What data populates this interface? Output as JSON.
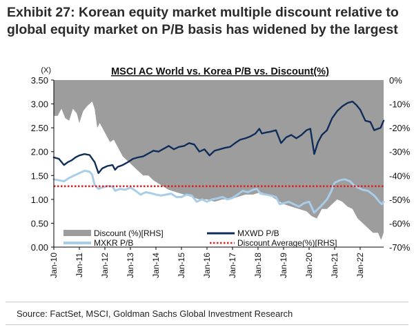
{
  "exhibit": {
    "title": "Exhibit 27: Korean equity market multiple discount relative to global equity market on P/B basis has widened by the largest",
    "source": "Source: FactSet, MSCI, Goldman Sachs Global Investment Research"
  },
  "chart_data": {
    "type": "line",
    "title": "MSCI AC World vs. Korea P/B vs. Discount(%)",
    "y_left_unit": "(X)",
    "y_left_ticks": [
      "0.00",
      "0.50",
      "1.00",
      "1.50",
      "2.00",
      "2.50",
      "3.00",
      "3.50"
    ],
    "y_left_range": [
      0,
      3.5
    ],
    "y_right_ticks": [
      "0%",
      "-10%",
      "-20%",
      "-30%",
      "-40%",
      "-50%",
      "-60%",
      "-70%"
    ],
    "y_right_range": [
      -70,
      0
    ],
    "x_ticks": [
      "Jan-10",
      "Jan-11",
      "Jan-12",
      "Jan-13",
      "Jan-14",
      "Jan-15",
      "Jan-16",
      "Jan-17",
      "Jan-18",
      "Jan-19",
      "Jan-20",
      "Jan-21",
      "Jan-22"
    ],
    "x_range": [
      2010.0,
      2022.92
    ],
    "legend": [
      {
        "label": "Discount (%)[RHS]",
        "key": "discount"
      },
      {
        "label": "MXWD P/B",
        "key": "mxwd"
      },
      {
        "label": "MXKR P/B",
        "key": "mxkr"
      },
      {
        "label": "Discount Average(%)[RHS]",
        "key": "avg"
      }
    ],
    "colors": {
      "discount": "#9d9d9d",
      "mxwd": "#0f2d59",
      "mxkr": "#a8cde8",
      "avg": "#e02020"
    },
    "series": [
      {
        "name": "MXWD P/B",
        "axis": "left",
        "points": [
          [
            2010.0,
            1.88
          ],
          [
            2010.2,
            1.85
          ],
          [
            2010.4,
            1.72
          ],
          [
            2010.55,
            1.78
          ],
          [
            2010.7,
            1.82
          ],
          [
            2010.85,
            1.88
          ],
          [
            2011.0,
            1.92
          ],
          [
            2011.2,
            1.95
          ],
          [
            2011.4,
            1.93
          ],
          [
            2011.6,
            1.78
          ],
          [
            2011.75,
            1.55
          ],
          [
            2011.9,
            1.65
          ],
          [
            2012.1,
            1.7
          ],
          [
            2012.3,
            1.72
          ],
          [
            2012.4,
            1.62
          ],
          [
            2012.5,
            1.68
          ],
          [
            2012.7,
            1.72
          ],
          [
            2012.9,
            1.78
          ],
          [
            2013.1,
            1.85
          ],
          [
            2013.3,
            1.88
          ],
          [
            2013.5,
            1.9
          ],
          [
            2013.7,
            1.96
          ],
          [
            2013.9,
            2.02
          ],
          [
            2014.1,
            2.0
          ],
          [
            2014.3,
            2.06
          ],
          [
            2014.5,
            2.12
          ],
          [
            2014.7,
            2.05
          ],
          [
            2014.9,
            2.1
          ],
          [
            2015.1,
            2.12
          ],
          [
            2015.3,
            2.18
          ],
          [
            2015.5,
            2.15
          ],
          [
            2015.7,
            2.0
          ],
          [
            2015.9,
            2.05
          ],
          [
            2016.1,
            1.92
          ],
          [
            2016.3,
            2.02
          ],
          [
            2016.5,
            2.05
          ],
          [
            2016.7,
            2.08
          ],
          [
            2016.9,
            2.1
          ],
          [
            2017.1,
            2.18
          ],
          [
            2017.3,
            2.25
          ],
          [
            2017.5,
            2.28
          ],
          [
            2017.7,
            2.32
          ],
          [
            2017.9,
            2.38
          ],
          [
            2018.05,
            2.48
          ],
          [
            2018.15,
            2.38
          ],
          [
            2018.3,
            2.4
          ],
          [
            2018.5,
            2.42
          ],
          [
            2018.7,
            2.45
          ],
          [
            2018.9,
            2.18
          ],
          [
            2019.1,
            2.3
          ],
          [
            2019.3,
            2.35
          ],
          [
            2019.5,
            2.28
          ],
          [
            2019.7,
            2.35
          ],
          [
            2019.9,
            2.45
          ],
          [
            2020.05,
            2.48
          ],
          [
            2020.2,
            1.95
          ],
          [
            2020.35,
            2.2
          ],
          [
            2020.5,
            2.35
          ],
          [
            2020.7,
            2.45
          ],
          [
            2020.9,
            2.7
          ],
          [
            2021.1,
            2.85
          ],
          [
            2021.3,
            2.95
          ],
          [
            2021.5,
            3.02
          ],
          [
            2021.7,
            3.05
          ],
          [
            2021.85,
            2.98
          ],
          [
            2022.0,
            2.88
          ],
          [
            2022.2,
            2.65
          ],
          [
            2022.4,
            2.62
          ],
          [
            2022.55,
            2.45
          ],
          [
            2022.7,
            2.48
          ],
          [
            2022.8,
            2.5
          ],
          [
            2022.92,
            2.65
          ]
        ]
      },
      {
        "name": "MXKR P/B",
        "axis": "left",
        "points": [
          [
            2010.0,
            1.42
          ],
          [
            2010.2,
            1.4
          ],
          [
            2010.4,
            1.38
          ],
          [
            2010.6,
            1.45
          ],
          [
            2010.8,
            1.5
          ],
          [
            2011.0,
            1.55
          ],
          [
            2011.2,
            1.6
          ],
          [
            2011.4,
            1.58
          ],
          [
            2011.5,
            1.52
          ],
          [
            2011.6,
            1.3
          ],
          [
            2011.75,
            1.22
          ],
          [
            2011.9,
            1.25
          ],
          [
            2012.1,
            1.28
          ],
          [
            2012.3,
            1.27
          ],
          [
            2012.4,
            1.18
          ],
          [
            2012.6,
            1.22
          ],
          [
            2012.8,
            1.2
          ],
          [
            2013.0,
            1.25
          ],
          [
            2013.2,
            1.18
          ],
          [
            2013.4,
            1.1
          ],
          [
            2013.6,
            1.15
          ],
          [
            2013.8,
            1.13
          ],
          [
            2014.0,
            1.1
          ],
          [
            2014.2,
            1.08
          ],
          [
            2014.4,
            1.1
          ],
          [
            2014.6,
            1.12
          ],
          [
            2014.8,
            1.05
          ],
          [
            2015.0,
            1.05
          ],
          [
            2015.2,
            1.1
          ],
          [
            2015.4,
            1.08
          ],
          [
            2015.6,
            0.95
          ],
          [
            2015.8,
            1.0
          ],
          [
            2016.0,
            0.95
          ],
          [
            2016.2,
            1.0
          ],
          [
            2016.4,
            1.02
          ],
          [
            2016.6,
            1.05
          ],
          [
            2016.8,
            1.0
          ],
          [
            2017.0,
            1.03
          ],
          [
            2017.2,
            1.1
          ],
          [
            2017.4,
            1.18
          ],
          [
            2017.6,
            1.15
          ],
          [
            2017.8,
            1.2
          ],
          [
            2017.95,
            1.22
          ],
          [
            2018.1,
            1.12
          ],
          [
            2018.3,
            1.1
          ],
          [
            2018.5,
            1.08
          ],
          [
            2018.7,
            1.05
          ],
          [
            2018.85,
            0.9
          ],
          [
            2019.0,
            0.92
          ],
          [
            2019.2,
            0.95
          ],
          [
            2019.4,
            0.9
          ],
          [
            2019.6,
            0.85
          ],
          [
            2019.8,
            0.92
          ],
          [
            2020.0,
            0.95
          ],
          [
            2020.2,
            0.72
          ],
          [
            2020.35,
            0.8
          ],
          [
            2020.5,
            0.88
          ],
          [
            2020.7,
            1.0
          ],
          [
            2020.85,
            1.15
          ],
          [
            2021.0,
            1.35
          ],
          [
            2021.2,
            1.4
          ],
          [
            2021.4,
            1.42
          ],
          [
            2021.6,
            1.38
          ],
          [
            2021.75,
            1.3
          ],
          [
            2021.9,
            1.25
          ],
          [
            2022.1,
            1.2
          ],
          [
            2022.3,
            1.18
          ],
          [
            2022.5,
            1.1
          ],
          [
            2022.6,
            1.05
          ],
          [
            2022.75,
            0.95
          ],
          [
            2022.85,
            0.9
          ],
          [
            2022.92,
            0.95
          ]
        ]
      },
      {
        "name": "Discount (%)[RHS]",
        "axis": "right",
        "points": [
          [
            2010.0,
            -15
          ],
          [
            2010.15,
            -15
          ],
          [
            2010.3,
            -12
          ],
          [
            2010.45,
            -16
          ],
          [
            2010.6,
            -17
          ],
          [
            2010.75,
            -12
          ],
          [
            2010.9,
            -14
          ],
          [
            2011.0,
            -18
          ],
          [
            2011.15,
            -13
          ],
          [
            2011.3,
            -11
          ],
          [
            2011.5,
            -9
          ],
          [
            2011.6,
            -12
          ],
          [
            2011.7,
            -20
          ],
          [
            2011.8,
            -18
          ],
          [
            2012.0,
            -22
          ],
          [
            2012.2,
            -26
          ],
          [
            2012.35,
            -25
          ],
          [
            2012.5,
            -28
          ],
          [
            2012.7,
            -32
          ],
          [
            2012.9,
            -34
          ],
          [
            2013.1,
            -36
          ],
          [
            2013.3,
            -38
          ],
          [
            2013.5,
            -40
          ],
          [
            2013.7,
            -40
          ],
          [
            2013.9,
            -42
          ],
          [
            2014.2,
            -44
          ],
          [
            2014.5,
            -46
          ],
          [
            2014.8,
            -47
          ],
          [
            2015.1,
            -48
          ],
          [
            2015.4,
            -49
          ],
          [
            2015.7,
            -50
          ],
          [
            2016.0,
            -50
          ],
          [
            2016.3,
            -51
          ],
          [
            2016.6,
            -50
          ],
          [
            2016.9,
            -50
          ],
          [
            2017.2,
            -49
          ],
          [
            2017.5,
            -48
          ],
          [
            2017.8,
            -48
          ],
          [
            2018.1,
            -47
          ],
          [
            2018.4,
            -48
          ],
          [
            2018.7,
            -50
          ],
          [
            2019.0,
            -52
          ],
          [
            2019.3,
            -53
          ],
          [
            2019.6,
            -54
          ],
          [
            2019.9,
            -55
          ],
          [
            2020.1,
            -57
          ],
          [
            2020.3,
            -58
          ],
          [
            2020.5,
            -54
          ],
          [
            2020.7,
            -54
          ],
          [
            2020.9,
            -52
          ],
          [
            2021.1,
            -50
          ],
          [
            2021.3,
            -51
          ],
          [
            2021.5,
            -53
          ],
          [
            2021.7,
            -54
          ],
          [
            2021.9,
            -58
          ],
          [
            2022.1,
            -60
          ],
          [
            2022.3,
            -62
          ],
          [
            2022.5,
            -64
          ],
          [
            2022.7,
            -64
          ],
          [
            2022.82,
            -67
          ],
          [
            2022.92,
            -64
          ]
        ]
      },
      {
        "name": "Discount Average(%)[RHS]",
        "axis": "right",
        "points": [
          [
            2010.0,
            -44.5
          ],
          [
            2022.92,
            -44.5
          ]
        ]
      }
    ]
  }
}
